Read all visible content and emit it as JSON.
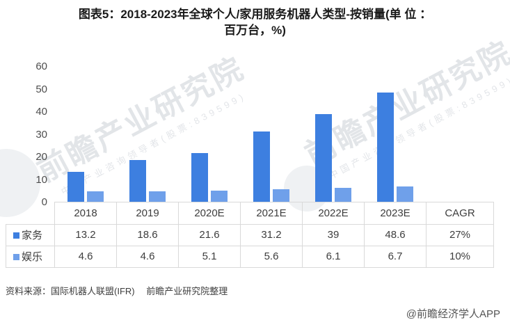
{
  "title": {
    "line1": "图表5：2018-2023年全球个人/家用服务机器人类型-按销量(单 位 ：",
    "line2": "百万台，%)"
  },
  "chart_data": {
    "type": "bar",
    "title": "图表5：2018-2023年全球个人/家用服务机器人类型-按销量(单位：百万台，%)",
    "categories": [
      "2018",
      "2019",
      "2020E",
      "2021E",
      "2022E",
      "2023E"
    ],
    "series": [
      {
        "name": "家务",
        "color": "#3D7FE0",
        "values": [
          13.2,
          18.6,
          21.6,
          31.2,
          39,
          48.6
        ],
        "cagr": "27%"
      },
      {
        "name": "娱乐",
        "color": "#6FA0EA",
        "values": [
          4.6,
          4.6,
          5.1,
          5.6,
          6.1,
          6.7
        ],
        "cagr": "10%"
      }
    ],
    "ylim": [
      0,
      60
    ],
    "y_ticks": [
      60,
      50,
      40,
      30,
      20,
      10,
      0
    ],
    "grid": false,
    "legend_position": "table-rows",
    "extra_column_header": "CAGR"
  },
  "watermark": {
    "main": "前瞻产业研究院",
    "sub": "中国产业咨询领导者(股票:839599)"
  },
  "footer": {
    "source": "资料来源：国际机器人联盟(IFR)　 前瞻产业研究院整理",
    "credit": "@前瞻经济学人APP"
  }
}
